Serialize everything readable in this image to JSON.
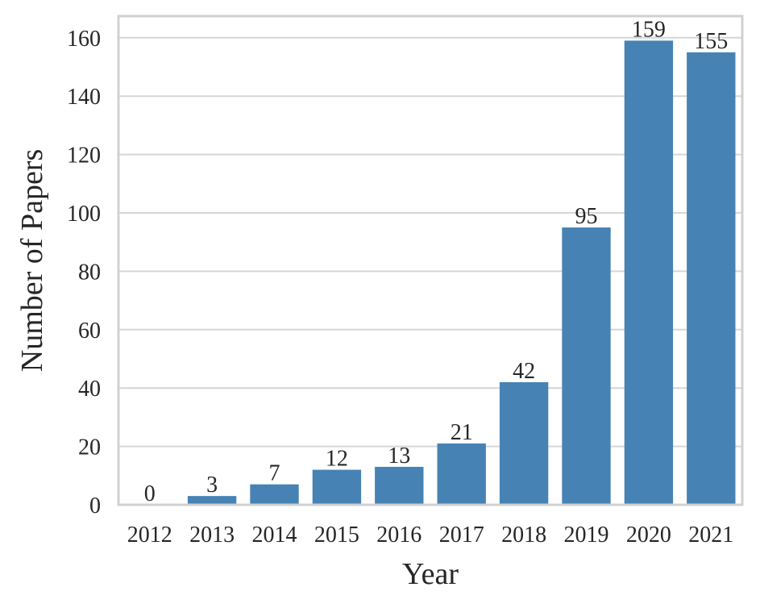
{
  "chart_data": {
    "type": "bar",
    "title": "",
    "xlabel": "Year",
    "ylabel": "Number of Papers",
    "categories": [
      "2012",
      "2013",
      "2014",
      "2015",
      "2016",
      "2017",
      "2018",
      "2019",
      "2020",
      "2021"
    ],
    "values": [
      0,
      3,
      7,
      12,
      13,
      21,
      42,
      95,
      159,
      155
    ],
    "data_labels": [
      "0",
      "3",
      "7",
      "12",
      "13",
      "21",
      "42",
      "95",
      "159",
      "155"
    ],
    "ylim": [
      0,
      167.4
    ],
    "yticks": [
      0,
      20,
      40,
      60,
      80,
      100,
      120,
      140,
      160
    ],
    "ytick_labels": [
      "0",
      "20",
      "40",
      "60",
      "80",
      "100",
      "120",
      "140",
      "160"
    ],
    "grid": "horizontal",
    "legend": "none",
    "colors": {
      "bar": "#4682b4",
      "grid": "#d6d6d6",
      "spine": "#d0d0d0",
      "text": "#262626"
    }
  }
}
